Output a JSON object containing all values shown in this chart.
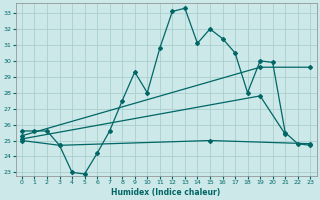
{
  "xlabel": "Humidex (Indice chaleur)",
  "bg_color": "#cce8e8",
  "grid_color": "#aacece",
  "line_color": "#006666",
  "xlim": [
    -0.5,
    23.5
  ],
  "ylim": [
    22.8,
    33.6
  ],
  "xticks": [
    0,
    1,
    2,
    3,
    4,
    5,
    6,
    7,
    8,
    9,
    10,
    11,
    12,
    13,
    14,
    15,
    16,
    17,
    18,
    19,
    20,
    21,
    22,
    23
  ],
  "yticks": [
    23,
    24,
    25,
    26,
    27,
    28,
    29,
    30,
    31,
    32,
    33
  ],
  "line1_x": [
    0,
    1,
    2,
    3,
    4,
    5,
    6,
    7,
    8,
    9,
    10,
    11,
    12,
    13,
    14,
    15,
    16,
    17,
    18,
    19,
    20,
    21,
    22,
    23
  ],
  "line1_y": [
    25.6,
    25.6,
    25.6,
    24.7,
    23.0,
    22.9,
    24.2,
    25.6,
    27.5,
    29.3,
    28.0,
    30.8,
    33.1,
    33.3,
    31.1,
    32.0,
    31.4,
    30.5,
    28.0,
    30.0,
    29.9,
    25.5,
    24.8,
    24.7
  ],
  "line2_x": [
    0,
    3,
    15,
    23
  ],
  "line2_y": [
    25.0,
    24.7,
    25.0,
    24.8
  ],
  "line3_x": [
    0,
    19,
    23
  ],
  "line3_y": [
    25.3,
    29.6,
    29.6
  ],
  "line4_x": [
    0,
    19,
    21
  ],
  "line4_y": [
    25.1,
    27.8,
    25.4
  ]
}
